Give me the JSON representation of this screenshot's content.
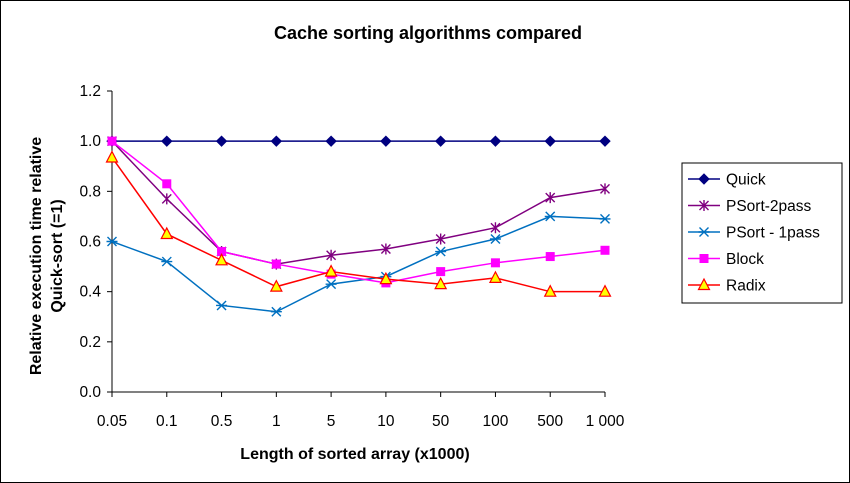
{
  "chart_data": {
    "type": "line",
    "title": "Cache sorting algorithms compared",
    "xlabel": "Length of sorted array  (x1000)",
    "ylabel_lines": [
      "Relative execution time relative",
      "Quick-sort (=1)"
    ],
    "categories": [
      "0.05",
      "0.1",
      "0.5",
      "1",
      "5",
      "10",
      "50",
      "100",
      "500",
      "1 000"
    ],
    "ylim": [
      0,
      1.2
    ],
    "yticks": [
      0.0,
      0.2,
      0.4,
      0.6,
      0.8,
      1.0,
      1.2
    ],
    "ytick_labels": [
      "0.0",
      "0.2",
      "0.4",
      "0.6",
      "0.8",
      "1.0",
      "1.2"
    ],
    "grid": false,
    "legend_position": "right",
    "series": [
      {
        "name": "Quick",
        "color": "#000080",
        "marker": "diamond",
        "values": [
          1.0,
          1.0,
          1.0,
          1.0,
          1.0,
          1.0,
          1.0,
          1.0,
          1.0,
          1.0
        ]
      },
      {
        "name": "PSort-2pass",
        "color": "#800080",
        "marker": "star",
        "values": [
          1.0,
          0.77,
          0.56,
          0.51,
          0.545,
          0.57,
          0.61,
          0.655,
          0.775,
          0.81
        ]
      },
      {
        "name": "PSort - 1pass",
        "color": "#0070C0",
        "marker": "asterisk",
        "values": [
          0.6,
          0.52,
          0.345,
          0.32,
          0.43,
          0.46,
          0.56,
          0.61,
          0.7,
          0.69
        ]
      },
      {
        "name": "Block",
        "color": "#FF00FF",
        "marker": "square",
        "values": [
          1.0,
          0.83,
          0.56,
          0.51,
          0.47,
          0.435,
          0.48,
          0.515,
          0.54,
          0.565
        ]
      },
      {
        "name": "Radix",
        "color": "#FF0000",
        "marker": "triangle",
        "marker_fill": "#FFFF00",
        "values": [
          0.935,
          0.63,
          0.525,
          0.42,
          0.48,
          0.45,
          0.43,
          0.455,
          0.4,
          0.4
        ]
      }
    ]
  }
}
